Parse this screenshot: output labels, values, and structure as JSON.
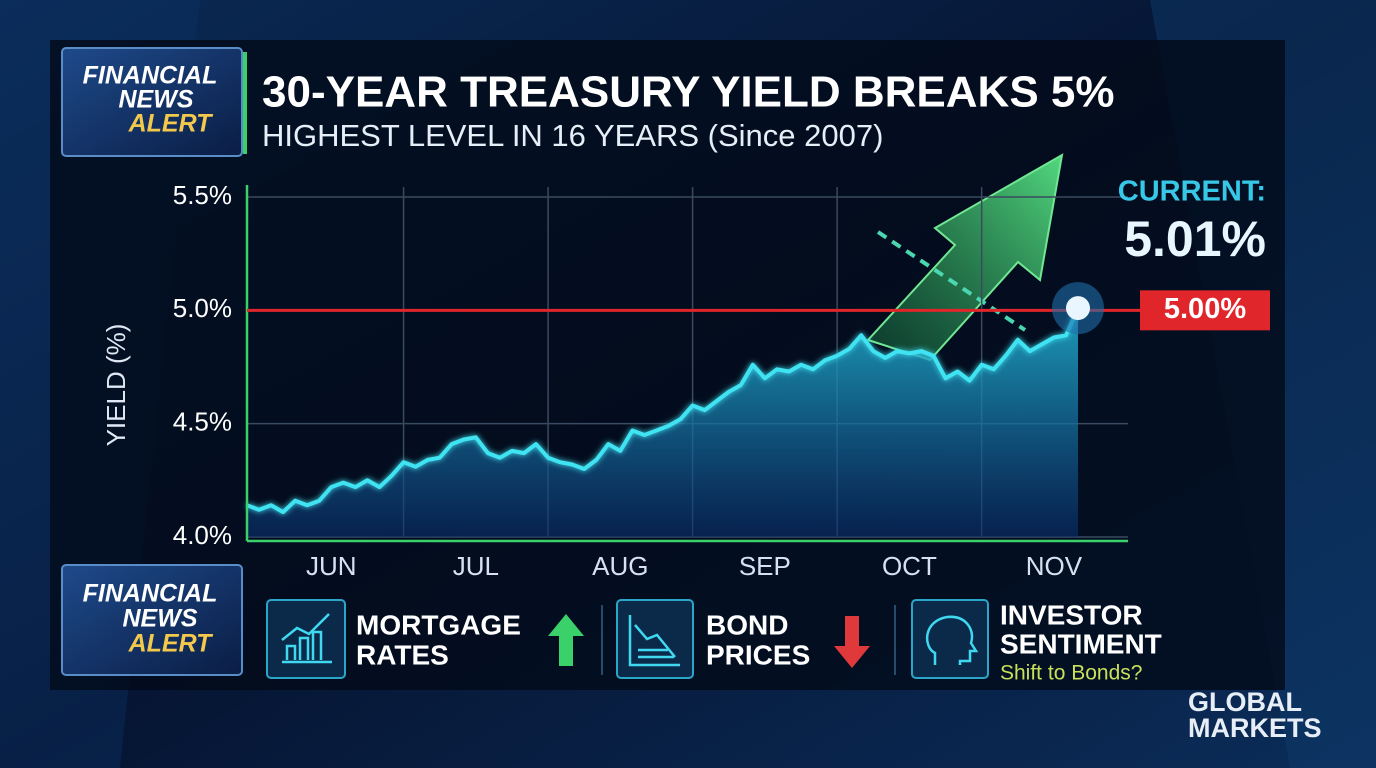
{
  "logo_top": [
    "FINANCIAL",
    "NEWS",
    "ALERT"
  ],
  "logo_bottom": [
    "FINANCIAL",
    "NEWS",
    "ALERT"
  ],
  "chart_data": {
    "type": "area-line",
    "title": "30-YEAR TREASURY YIELD BREAKS 5%",
    "subtitle": "HIGHEST LEVEL IN 16 YEARS (Since 2007)",
    "y_label": "YIELD (%)",
    "categories": [
      null,
      null,
      null,
      null,
      null,
      null,
      null,
      "JUN",
      null,
      null,
      null,
      null,
      null,
      null,
      null,
      null,
      null,
      null,
      null,
      "JUL",
      null,
      null,
      null,
      null,
      null,
      null,
      null,
      null,
      null,
      null,
      null,
      "AUG",
      null,
      null,
      null,
      null,
      null,
      null,
      null,
      null,
      null,
      null,
      null,
      "SEP",
      null,
      null,
      null,
      null,
      null,
      null,
      null,
      null,
      null,
      null,
      null,
      "OCT",
      null,
      null,
      null,
      null,
      null,
      null,
      null,
      null,
      null,
      null,
      null,
      "NOV",
      null,
      null
    ],
    "values": [
      4.14,
      4.12,
      4.14,
      4.11,
      4.16,
      4.14,
      4.16,
      4.22,
      4.24,
      4.22,
      4.25,
      4.22,
      4.27,
      4.33,
      4.31,
      4.34,
      4.35,
      4.41,
      4.43,
      4.44,
      4.37,
      4.35,
      4.38,
      4.37,
      4.41,
      4.35,
      4.33,
      4.32,
      4.3,
      4.34,
      4.41,
      4.38,
      4.47,
      4.45,
      4.47,
      4.49,
      4.52,
      4.58,
      4.56,
      4.6,
      4.64,
      4.67,
      4.76,
      4.7,
      4.74,
      4.73,
      4.76,
      4.74,
      4.78,
      4.8,
      4.83,
      4.89,
      4.82,
      4.79,
      4.82,
      4.81,
      4.82,
      4.8,
      4.7,
      4.73,
      4.69,
      4.76,
      4.74,
      4.8,
      4.87,
      4.82,
      4.85,
      4.88,
      4.89,
      5.01
    ],
    "color": "#3fe3f2",
    "ylim": [
      4.0,
      5.5
    ],
    "yticks": [
      {
        "value": 4.0,
        "label": "4.0%"
      },
      {
        "value": 4.5,
        "label": "4.5%"
      },
      {
        "value": 5.0,
        "label": "5.0%"
      },
      {
        "value": 5.5,
        "label": "5.5%"
      }
    ],
    "grid": true,
    "reference_line": {
      "value": 5.0,
      "label": "5.00%",
      "color": "#e0262b"
    },
    "current": {
      "label": "CURRENT:",
      "value_label": "5.01%"
    }
  },
  "indicators": [
    {
      "lines": [
        "MORTGAGE",
        "RATES"
      ]
    },
    {
      "lines": [
        "BOND",
        "PRICES"
      ]
    },
    {
      "lines": [
        "INVESTOR",
        "SENTIMENT"
      ],
      "note": "Shift to Bonds?"
    }
  ],
  "footer": [
    "GLOBAL",
    "MARKETS"
  ]
}
